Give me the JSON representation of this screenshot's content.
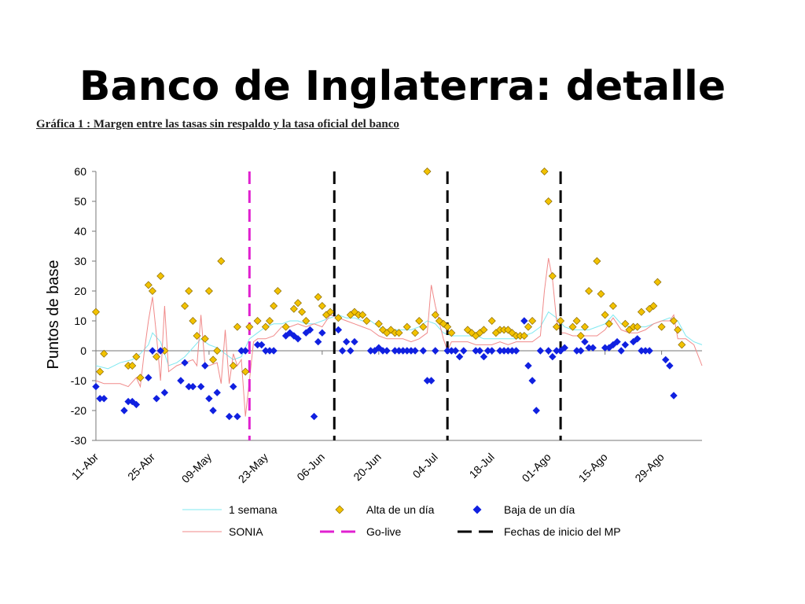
{
  "slide": {
    "title": "Banco de Inglaterra: detalle",
    "caption": "Gráfica 1 :  Margen entre las tasas sin respaldo y la tasa oficial del banco"
  },
  "colors": {
    "one_week": "#7fe8f0",
    "sonia": "#f08a8a",
    "alta": "#f2c200",
    "alta_edge": "#8a6a00",
    "baja": "#1020e0",
    "go_live": "#e020d0",
    "mp_dates": "#000000"
  },
  "chart_data": {
    "type": "line",
    "title": "",
    "ylabel": "Puntos  de base",
    "xlabel": "",
    "ylim": [
      -30,
      60
    ],
    "yticks": [
      -30,
      -20,
      -10,
      0,
      10,
      20,
      30,
      40,
      50,
      60
    ],
    "xlim": [
      0,
      150
    ],
    "xtick_labels": [
      "11-Abr",
      "25-Abr",
      "09-May",
      "23-May",
      "06-Jun",
      "20-Jun",
      "04-Jul",
      "18-Jul",
      "01-Ago",
      "15-Ago",
      "29-Ago"
    ],
    "xtick_positions": [
      0,
      14,
      28,
      42,
      56,
      70,
      84,
      98,
      112,
      126,
      140
    ],
    "grid": false,
    "legend_position": "bottom",
    "legend": {
      "one_week": "1 semana",
      "alta": "Alta de un día",
      "baja": "Baja de un día",
      "sonia": "SONIA",
      "go_live": "Go-live",
      "mp_dates": "Fechas de inicio  del MP"
    },
    "vlines": {
      "go_live": [
        38
      ],
      "mp_dates": [
        59,
        87,
        115
      ]
    },
    "series": [
      {
        "key": "one_week",
        "name": "1 semana",
        "points": [
          [
            0,
            -5
          ],
          [
            3,
            -6
          ],
          [
            6,
            -4
          ],
          [
            9,
            -3
          ],
          [
            11,
            -1
          ],
          [
            13,
            2
          ],
          [
            14,
            6
          ],
          [
            16,
            3
          ],
          [
            18,
            -5
          ],
          [
            20,
            -4
          ],
          [
            22,
            -2
          ],
          [
            24,
            1
          ],
          [
            26,
            4
          ],
          [
            28,
            2
          ],
          [
            30,
            1
          ],
          [
            32,
            -1
          ],
          [
            34,
            -3
          ],
          [
            36,
            -2
          ],
          [
            38,
            4
          ],
          [
            40,
            6
          ],
          [
            42,
            8
          ],
          [
            44,
            9
          ],
          [
            46,
            9
          ],
          [
            48,
            10
          ],
          [
            50,
            10
          ],
          [
            52,
            9
          ],
          [
            54,
            9
          ],
          [
            56,
            10
          ],
          [
            58,
            11
          ],
          [
            60,
            12
          ],
          [
            62,
            11
          ],
          [
            64,
            11
          ],
          [
            66,
            10
          ],
          [
            68,
            10
          ],
          [
            70,
            8
          ],
          [
            72,
            7
          ],
          [
            74,
            7
          ],
          [
            76,
            7
          ],
          [
            78,
            7
          ],
          [
            80,
            8
          ],
          [
            82,
            10
          ],
          [
            84,
            9
          ],
          [
            86,
            6
          ],
          [
            88,
            5
          ],
          [
            90,
            5
          ],
          [
            92,
            5
          ],
          [
            94,
            5
          ],
          [
            96,
            4
          ],
          [
            98,
            4
          ],
          [
            100,
            4
          ],
          [
            102,
            4
          ],
          [
            104,
            4
          ],
          [
            106,
            5
          ],
          [
            108,
            6
          ],
          [
            110,
            8
          ],
          [
            112,
            13
          ],
          [
            114,
            11
          ],
          [
            116,
            8
          ],
          [
            118,
            7
          ],
          [
            120,
            7
          ],
          [
            122,
            7
          ],
          [
            124,
            8
          ],
          [
            126,
            9
          ],
          [
            128,
            12
          ],
          [
            130,
            9
          ],
          [
            132,
            8
          ],
          [
            134,
            8
          ],
          [
            136,
            8
          ],
          [
            138,
            9
          ],
          [
            140,
            10
          ],
          [
            142,
            11
          ],
          [
            144,
            10
          ],
          [
            146,
            5
          ],
          [
            148,
            3
          ],
          [
            150,
            2
          ]
        ]
      },
      {
        "key": "sonia",
        "name": "SONIA",
        "points": [
          [
            0,
            -10
          ],
          [
            2,
            -11
          ],
          [
            4,
            -11
          ],
          [
            6,
            -11
          ],
          [
            8,
            -12
          ],
          [
            10,
            -9
          ],
          [
            11,
            -12
          ],
          [
            12,
            0
          ],
          [
            13,
            10
          ],
          [
            14,
            18
          ],
          [
            15,
            5
          ],
          [
            16,
            -10
          ],
          [
            17,
            15
          ],
          [
            18,
            -7
          ],
          [
            20,
            -5
          ],
          [
            22,
            -4
          ],
          [
            24,
            -3
          ],
          [
            25,
            -5
          ],
          [
            26,
            12
          ],
          [
            27,
            -5
          ],
          [
            28,
            -5
          ],
          [
            30,
            -4
          ],
          [
            31,
            -11
          ],
          [
            32,
            7
          ],
          [
            33,
            -11
          ],
          [
            34,
            -1
          ],
          [
            35,
            -5
          ],
          [
            36,
            -3
          ],
          [
            37,
            -22
          ],
          [
            38,
            -10
          ],
          [
            39,
            3
          ],
          [
            40,
            4
          ],
          [
            42,
            4
          ],
          [
            44,
            5
          ],
          [
            46,
            8
          ],
          [
            48,
            8
          ],
          [
            50,
            9
          ],
          [
            52,
            8
          ],
          [
            54,
            9
          ],
          [
            56,
            8
          ],
          [
            58,
            12
          ],
          [
            60,
            11
          ],
          [
            62,
            10
          ],
          [
            64,
            9
          ],
          [
            66,
            8
          ],
          [
            68,
            7
          ],
          [
            70,
            5
          ],
          [
            72,
            4
          ],
          [
            74,
            4
          ],
          [
            76,
            4
          ],
          [
            78,
            3
          ],
          [
            80,
            4
          ],
          [
            82,
            6
          ],
          [
            83,
            22
          ],
          [
            84,
            15
          ],
          [
            86,
            4
          ],
          [
            87,
            0
          ],
          [
            88,
            3
          ],
          [
            90,
            3
          ],
          [
            92,
            3
          ],
          [
            94,
            2
          ],
          [
            96,
            2
          ],
          [
            98,
            2
          ],
          [
            100,
            3
          ],
          [
            102,
            2
          ],
          [
            104,
            3
          ],
          [
            106,
            3
          ],
          [
            108,
            3
          ],
          [
            110,
            5
          ],
          [
            111,
            20
          ],
          [
            112,
            31
          ],
          [
            113,
            24
          ],
          [
            114,
            10
          ],
          [
            115,
            6
          ],
          [
            116,
            6
          ],
          [
            118,
            5
          ],
          [
            120,
            5
          ],
          [
            122,
            5
          ],
          [
            124,
            5
          ],
          [
            126,
            7
          ],
          [
            128,
            11
          ],
          [
            130,
            7
          ],
          [
            132,
            6
          ],
          [
            134,
            6
          ],
          [
            136,
            7
          ],
          [
            138,
            9
          ],
          [
            140,
            10
          ],
          [
            142,
            10
          ],
          [
            143,
            12
          ],
          [
            144,
            4
          ],
          [
            146,
            4
          ],
          [
            148,
            2
          ],
          [
            150,
            -5
          ]
        ]
      }
    ],
    "alta_points": [
      [
        0,
        13
      ],
      [
        1,
        -7
      ],
      [
        2,
        -1
      ],
      [
        8,
        -5
      ],
      [
        9,
        -5
      ],
      [
        10,
        -2
      ],
      [
        11,
        -9
      ],
      [
        13,
        22
      ],
      [
        14,
        20
      ],
      [
        15,
        -2
      ],
      [
        16,
        25
      ],
      [
        17,
        0
      ],
      [
        22,
        15
      ],
      [
        23,
        20
      ],
      [
        24,
        10
      ],
      [
        25,
        5
      ],
      [
        27,
        4
      ],
      [
        28,
        20
      ],
      [
        29,
        -3
      ],
      [
        30,
        0
      ],
      [
        31,
        30
      ],
      [
        34,
        -5
      ],
      [
        35,
        8
      ],
      [
        37,
        -7
      ],
      [
        38,
        8
      ],
      [
        40,
        10
      ],
      [
        42,
        8
      ],
      [
        43,
        10
      ],
      [
        44,
        15
      ],
      [
        45,
        20
      ],
      [
        47,
        8
      ],
      [
        49,
        14
      ],
      [
        50,
        16
      ],
      [
        51,
        13
      ],
      [
        52,
        10
      ],
      [
        55,
        18
      ],
      [
        56,
        15
      ],
      [
        57,
        12
      ],
      [
        58,
        13
      ],
      [
        60,
        11
      ],
      [
        63,
        12
      ],
      [
        64,
        13
      ],
      [
        65,
        12
      ],
      [
        66,
        12
      ],
      [
        67,
        10
      ],
      [
        70,
        9
      ],
      [
        71,
        7
      ],
      [
        72,
        6
      ],
      [
        73,
        7
      ],
      [
        74,
        6
      ],
      [
        75,
        6
      ],
      [
        77,
        8
      ],
      [
        79,
        6
      ],
      [
        80,
        10
      ],
      [
        81,
        8
      ],
      [
        82,
        60
      ],
      [
        84,
        12
      ],
      [
        85,
        10
      ],
      [
        86,
        9
      ],
      [
        87,
        8
      ],
      [
        88,
        6
      ],
      [
        92,
        7
      ],
      [
        93,
        6
      ],
      [
        94,
        5
      ],
      [
        95,
        6
      ],
      [
        96,
        7
      ],
      [
        98,
        10
      ],
      [
        99,
        6
      ],
      [
        100,
        7
      ],
      [
        101,
        7
      ],
      [
        102,
        7
      ],
      [
        103,
        6
      ],
      [
        104,
        5
      ],
      [
        105,
        5
      ],
      [
        106,
        5
      ],
      [
        107,
        8
      ],
      [
        108,
        10
      ],
      [
        111,
        60
      ],
      [
        112,
        50
      ],
      [
        113,
        25
      ],
      [
        114,
        8
      ],
      [
        115,
        10
      ],
      [
        118,
        8
      ],
      [
        119,
        10
      ],
      [
        120,
        5
      ],
      [
        121,
        8
      ],
      [
        122,
        20
      ],
      [
        124,
        30
      ],
      [
        125,
        19
      ],
      [
        126,
        12
      ],
      [
        127,
        9
      ],
      [
        128,
        15
      ],
      [
        131,
        9
      ],
      [
        132,
        7
      ],
      [
        133,
        8
      ],
      [
        134,
        8
      ],
      [
        135,
        13
      ],
      [
        137,
        14
      ],
      [
        138,
        15
      ],
      [
        139,
        23
      ],
      [
        140,
        8
      ],
      [
        143,
        10
      ],
      [
        144,
        7
      ],
      [
        145,
        2
      ]
    ],
    "baja_points": [
      [
        0,
        -12
      ],
      [
        1,
        -16
      ],
      [
        2,
        -16
      ],
      [
        7,
        -20
      ],
      [
        8,
        -17
      ],
      [
        9,
        -17
      ],
      [
        10,
        -18
      ],
      [
        13,
        -9
      ],
      [
        14,
        0
      ],
      [
        15,
        -16
      ],
      [
        16,
        0
      ],
      [
        17,
        -14
      ],
      [
        21,
        -10
      ],
      [
        22,
        -4
      ],
      [
        23,
        -12
      ],
      [
        24,
        -12
      ],
      [
        26,
        -12
      ],
      [
        27,
        -5
      ],
      [
        28,
        -16
      ],
      [
        29,
        -20
      ],
      [
        30,
        -14
      ],
      [
        33,
        -22
      ],
      [
        34,
        -12
      ],
      [
        35,
        -22
      ],
      [
        36,
        0
      ],
      [
        37,
        0
      ],
      [
        40,
        2
      ],
      [
        41,
        2
      ],
      [
        42,
        0
      ],
      [
        43,
        0
      ],
      [
        44,
        0
      ],
      [
        47,
        5
      ],
      [
        48,
        6
      ],
      [
        49,
        5
      ],
      [
        50,
        4
      ],
      [
        52,
        6
      ],
      [
        53,
        7
      ],
      [
        54,
        -22
      ],
      [
        55,
        3
      ],
      [
        56,
        6
      ],
      [
        60,
        7
      ],
      [
        61,
        0
      ],
      [
        62,
        3
      ],
      [
        63,
        0
      ],
      [
        64,
        3
      ],
      [
        68,
        0
      ],
      [
        69,
        0
      ],
      [
        70,
        1
      ],
      [
        71,
        0
      ],
      [
        72,
        0
      ],
      [
        74,
        0
      ],
      [
        75,
        0
      ],
      [
        76,
        0
      ],
      [
        77,
        0
      ],
      [
        78,
        0
      ],
      [
        79,
        0
      ],
      [
        81,
        0
      ],
      [
        82,
        -10
      ],
      [
        83,
        -10
      ],
      [
        84,
        0
      ],
      [
        87,
        0
      ],
      [
        88,
        0
      ],
      [
        89,
        0
      ],
      [
        90,
        -2
      ],
      [
        91,
        0
      ],
      [
        94,
        0
      ],
      [
        95,
        0
      ],
      [
        96,
        -2
      ],
      [
        97,
        0
      ],
      [
        98,
        0
      ],
      [
        100,
        0
      ],
      [
        101,
        0
      ],
      [
        102,
        0
      ],
      [
        103,
        0
      ],
      [
        104,
        0
      ],
      [
        106,
        10
      ],
      [
        107,
        -5
      ],
      [
        108,
        -10
      ],
      [
        109,
        -20
      ],
      [
        110,
        0
      ],
      [
        112,
        0
      ],
      [
        113,
        -2
      ],
      [
        114,
        0
      ],
      [
        115,
        0
      ],
      [
        116,
        1
      ],
      [
        119,
        0
      ],
      [
        120,
        0
      ],
      [
        121,
        3
      ],
      [
        122,
        1
      ],
      [
        123,
        1
      ],
      [
        126,
        1
      ],
      [
        127,
        1
      ],
      [
        128,
        2
      ],
      [
        129,
        3
      ],
      [
        130,
        0
      ],
      [
        131,
        2
      ],
      [
        133,
        3
      ],
      [
        134,
        4
      ],
      [
        135,
        0
      ],
      [
        136,
        0
      ],
      [
        137,
        0
      ],
      [
        141,
        -3
      ],
      [
        142,
        -5
      ],
      [
        143,
        -15
      ]
    ]
  }
}
